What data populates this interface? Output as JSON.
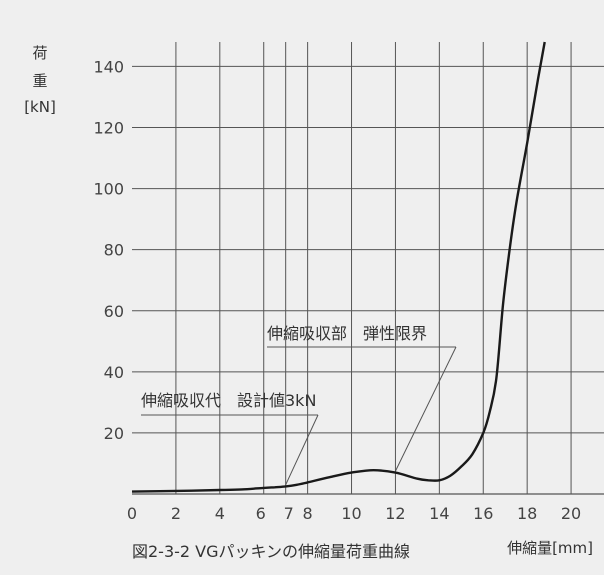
{
  "chart_data": {
    "type": "line",
    "title": "",
    "caption": "図2-3-2 VGパッキンの伸縮量荷重曲線",
    "ylabel": {
      "line1": "荷",
      "line2": "重",
      "line3": "[kN]"
    },
    "xlabel": "伸縮量[mm]",
    "xlim": [
      0,
      21.5
    ],
    "ylim": [
      0,
      148
    ],
    "x_ticks": [
      0,
      2,
      4,
      6,
      7,
      8,
      10,
      12,
      14,
      16,
      18,
      20
    ],
    "x_tick_labels": [
      "0",
      "2",
      "4",
      "6",
      "7",
      "8",
      "10",
      "12",
      "14",
      "16",
      "18",
      "20"
    ],
    "x_grid": [
      2,
      4,
      6,
      7,
      8,
      10,
      12,
      14,
      16,
      18,
      20
    ],
    "y_ticks": [
      20,
      40,
      60,
      80,
      100,
      120,
      140
    ],
    "y_tick_labels": [
      "20",
      "40",
      "60",
      "80",
      "100",
      "120",
      "140"
    ],
    "grid": true,
    "series": [
      {
        "x": [
          0,
          2,
          4,
          5,
          6,
          6.5,
          7,
          7.5,
          8,
          9,
          10,
          11,
          12,
          13,
          13.5,
          14,
          14.5,
          15,
          15.5,
          16,
          16.3,
          16.6,
          16.9,
          17.2,
          17.5,
          18,
          18.5,
          18.8
        ],
        "y": [
          0.8,
          1.0,
          1.3,
          1.5,
          2.0,
          2.2,
          2.5,
          3.0,
          3.8,
          5.5,
          7.0,
          7.8,
          7.0,
          5.0,
          4.5,
          4.5,
          6.0,
          9.0,
          13.0,
          20.0,
          27.0,
          38.0,
          62.0,
          80.0,
          95.0,
          115.0,
          136.0,
          148.0
        ]
      }
    ],
    "annotations": [
      {
        "text": "伸縮吸収代　設計値3kN",
        "x": 7,
        "y": 3
      },
      {
        "text": "伸縮吸収部　弾性限界",
        "x": 12,
        "y": 7.5
      }
    ]
  },
  "colors": {
    "background": "#efefef",
    "line": "#1a1a1a",
    "grid": "#555555",
    "text": "#333333"
  }
}
